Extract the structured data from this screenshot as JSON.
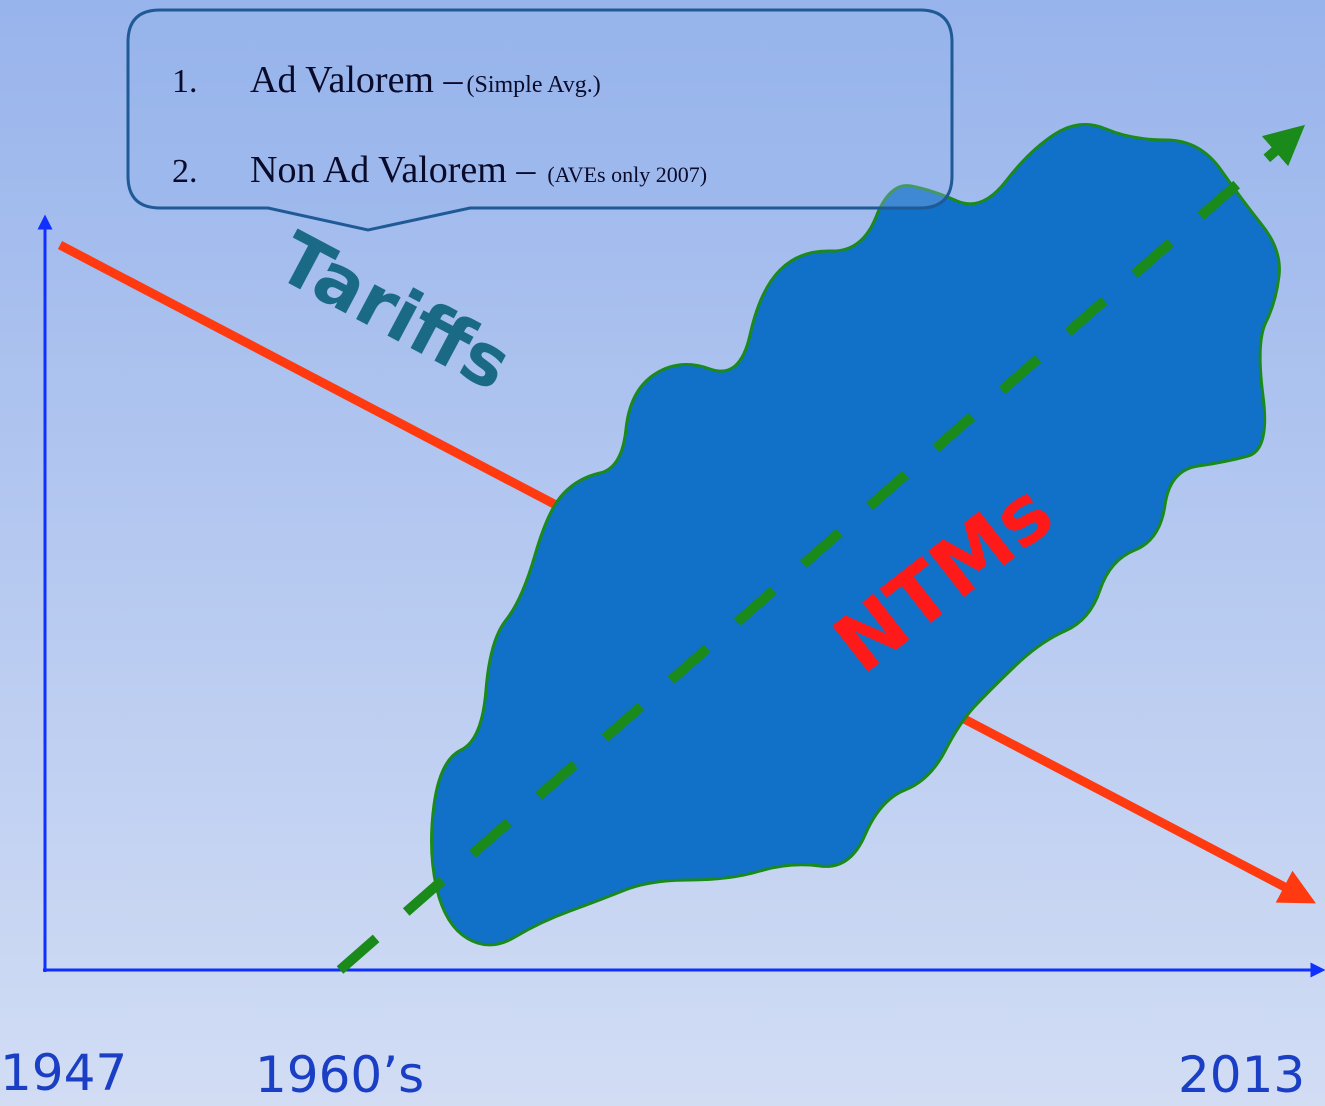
{
  "callout": {
    "items": [
      {
        "number": "1.",
        "text": "Ad Valorem –",
        "note": "(Simple Avg.)"
      },
      {
        "number": "2.",
        "text": "Non Ad Valorem –",
        "note": "(AVEs only 2007)"
      }
    ]
  },
  "labels": {
    "tariffs": "Tariffs",
    "ntms": "NTMs"
  },
  "axis": {
    "start": "1947",
    "middle": "1960’s",
    "end": "2013"
  }
}
